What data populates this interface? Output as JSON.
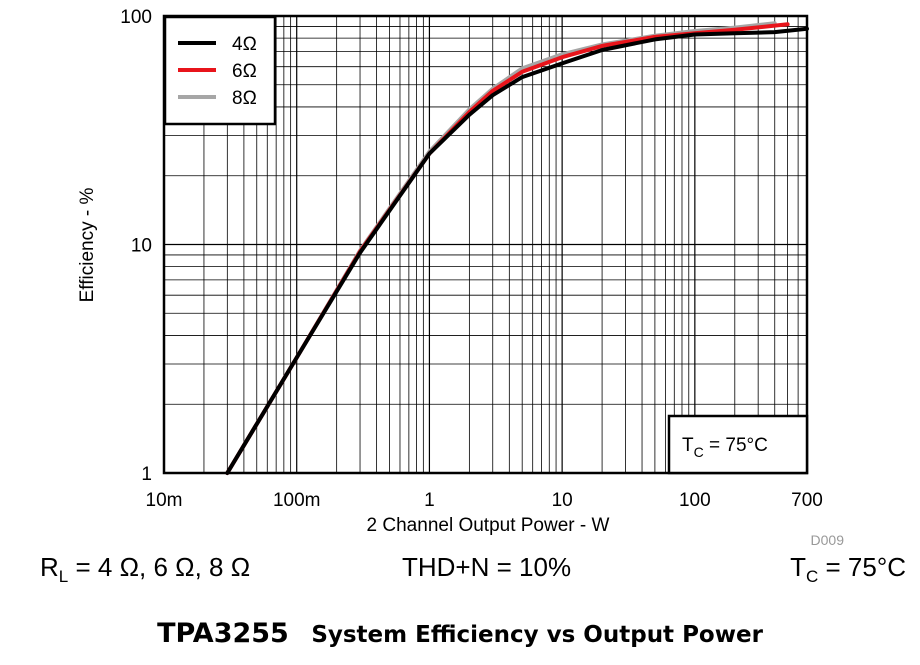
{
  "chart_data": {
    "type": "line",
    "xlabel": "2 Channel Output Power - W",
    "ylabel": "Efficiency - %",
    "xscale": "log",
    "yscale": "log",
    "xlim": [
      0.01,
      700
    ],
    "ylim": [
      1,
      100
    ],
    "x_tick_labels": [
      "10m",
      "100m",
      "1",
      "10",
      "100",
      "700"
    ],
    "y_tick_labels": [
      "1",
      "10",
      "100"
    ],
    "grid": true,
    "legend_position": "top-left",
    "annotation": {
      "prefix": "T",
      "sub": "C",
      "suffix": " = 75°C"
    },
    "code_label": "D009",
    "series": [
      {
        "name": "4Ω",
        "color": "#000000",
        "x": [
          0.03,
          0.1,
          0.3,
          1,
          2,
          3,
          5,
          10,
          20,
          50,
          100,
          200,
          400,
          700
        ],
        "y": [
          1,
          3.2,
          9.2,
          25,
          37,
          45,
          54,
          62,
          71,
          79,
          83,
          84,
          85,
          88
        ]
      },
      {
        "name": "6Ω",
        "color": "#e8141b",
        "x": [
          0.03,
          0.1,
          0.3,
          1,
          2,
          3,
          5,
          10,
          20,
          50,
          100,
          200,
          500
        ],
        "y": [
          1,
          3.2,
          9.3,
          25,
          38,
          47,
          57,
          66,
          74,
          81,
          84,
          87,
          92
        ]
      },
      {
        "name": "8Ω",
        "color": "#a6a6a6",
        "x": [
          0.03,
          0.1,
          0.3,
          1,
          2,
          3,
          5,
          10,
          20,
          50,
          100,
          200,
          400
        ],
        "y": [
          1,
          3.2,
          9.4,
          25.5,
          39,
          48,
          59,
          68,
          75,
          82,
          86,
          89,
          93
        ]
      }
    ]
  },
  "conditions": {
    "load_prefix": "R",
    "load_sub": "L",
    "load_suffix": " = 4 Ω, 6 Ω, 8 Ω",
    "thd": "THD+N = 10%",
    "temp_prefix": "T",
    "temp_sub": "C",
    "temp_suffix": " = 75°C"
  },
  "footer": {
    "part": "TPA3255",
    "title": "System Efficiency vs Output Power"
  }
}
